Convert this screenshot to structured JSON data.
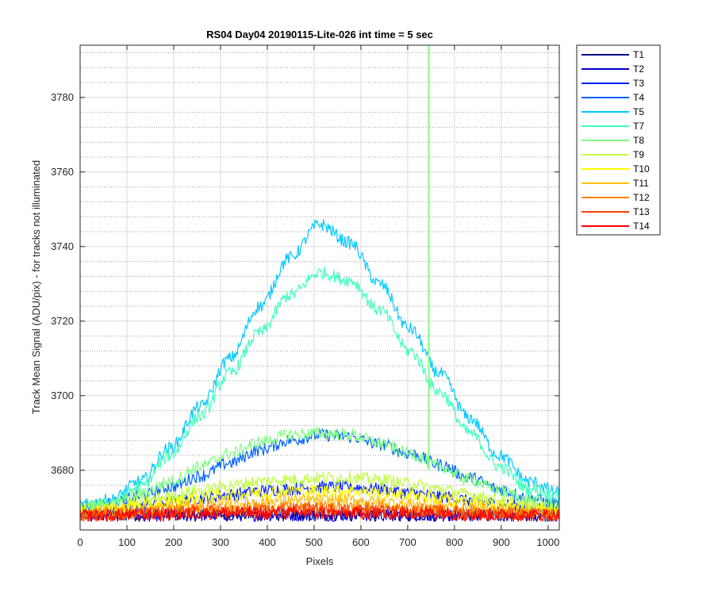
{
  "chart_data": {
    "type": "line",
    "title": "RS04 Day04 20190115-Lite-026 int time = 5 sec",
    "xlabel": "Pixels",
    "ylabel": "Track Mean Signal (ADU/pix) - for tracks not illuminated",
    "xlim": [
      0,
      1024
    ],
    "ylim": [
      3664,
      3794
    ],
    "xticks": [
      0,
      100,
      200,
      300,
      400,
      500,
      600,
      700,
      800,
      900,
      1000
    ],
    "yticks": [
      3680,
      3700,
      3720,
      3740,
      3760,
      3780
    ],
    "grid": "on (major solid, minor dotted on y)",
    "legend_position": "outside-right",
    "x": [
      0,
      64,
      128,
      192,
      256,
      320,
      384,
      448,
      512,
      576,
      640,
      704,
      768,
      832,
      896,
      960,
      1024
    ],
    "series": [
      {
        "name": "T1",
        "color": "#00008F",
        "values": [
          3668,
          3668,
          3668,
          3668,
          3668,
          3668,
          3668,
          3668,
          3668,
          3668,
          3668,
          3668,
          3668,
          3668,
          3668,
          3668,
          3668
        ]
      },
      {
        "name": "T2",
        "color": "#0000CF",
        "values": [
          3668,
          3668,
          3668,
          3668,
          3668,
          3668,
          3668,
          3668,
          3668,
          3668,
          3668,
          3668,
          3668,
          3668,
          3668,
          3668,
          3668
        ]
      },
      {
        "name": "T3",
        "color": "#0020FF",
        "values": [
          3669,
          3669.5,
          3670.5,
          3671.5,
          3672.5,
          3673.5,
          3674.5,
          3675,
          3675.5,
          3675.5,
          3675,
          3674,
          3673,
          3672,
          3671,
          3670,
          3669.5
        ]
      },
      {
        "name": "T4",
        "color": "#0060FF",
        "values": [
          3670,
          3671,
          3673,
          3675.5,
          3678.5,
          3682,
          3685.5,
          3688,
          3689.5,
          3689,
          3687,
          3684.5,
          3681.5,
          3678,
          3675,
          3672.5,
          3671
        ]
      },
      {
        "name": "T5",
        "color": "#00C8FF",
        "values": [
          3670.5,
          3672,
          3677,
          3686,
          3697,
          3710,
          3724,
          3737,
          3746,
          3741,
          3730,
          3718,
          3706,
          3694,
          3684,
          3677,
          3674
        ]
      },
      {
        "name": "T7",
        "color": "#40FFBF",
        "values": [
          3669.5,
          3671,
          3675.5,
          3684,
          3694.5,
          3706,
          3717,
          3727,
          3733,
          3731,
          3723,
          3712,
          3701,
          3690,
          3681,
          3675,
          3673
        ]
      },
      {
        "name": "T8",
        "color": "#7FFF7F",
        "values": [
          3670,
          3671,
          3673.5,
          3677,
          3681,
          3684.5,
          3687.5,
          3689.5,
          3690,
          3689.5,
          3687.5,
          3684.5,
          3681,
          3677.5,
          3674.5,
          3672,
          3670.5
        ]
      },
      {
        "name": "T9",
        "color": "#BFFF40",
        "values": [
          3669.5,
          3670,
          3671.5,
          3673,
          3674.5,
          3676,
          3677,
          3677.5,
          3678,
          3678,
          3677.5,
          3676.5,
          3675,
          3673.5,
          3672,
          3670.5,
          3669.5
        ]
      },
      {
        "name": "T10",
        "color": "#FFFF00",
        "values": [
          3669,
          3669.5,
          3670.5,
          3671.5,
          3672.5,
          3673.5,
          3674,
          3674.5,
          3674.5,
          3674.5,
          3674,
          3673.5,
          3672.5,
          3671.5,
          3670.5,
          3669.5,
          3669
        ]
      },
      {
        "name": "T11",
        "color": "#FFBF00",
        "values": [
          3668.5,
          3669,
          3669.5,
          3670,
          3670.5,
          3671,
          3671.5,
          3672,
          3672,
          3672,
          3671.5,
          3671,
          3670.5,
          3670,
          3669.5,
          3669,
          3668.5
        ]
      },
      {
        "name": "T12",
        "color": "#FF8000",
        "values": [
          3668,
          3668.5,
          3668.5,
          3669,
          3669.5,
          3669.5,
          3670,
          3670,
          3670,
          3670,
          3670,
          3669.5,
          3669,
          3669,
          3668.5,
          3668.5,
          3668
        ]
      },
      {
        "name": "T13",
        "color": "#FF4000",
        "values": [
          3668,
          3668,
          3668.5,
          3668.5,
          3669,
          3669,
          3669,
          3669.5,
          3669.5,
          3669.5,
          3669,
          3669,
          3669,
          3668.5,
          3668.5,
          3668,
          3668
        ]
      },
      {
        "name": "T14",
        "color": "#FF0000",
        "values": [
          3668,
          3668,
          3668,
          3668,
          3668.5,
          3668.5,
          3668.5,
          3668.5,
          3668.5,
          3668.5,
          3668.5,
          3668.5,
          3668.5,
          3668,
          3668,
          3668,
          3668
        ]
      }
    ],
    "annotations": [
      {
        "type": "spike",
        "series": "T8",
        "x": 745,
        "from": 3680,
        "to": 3794
      }
    ]
  }
}
